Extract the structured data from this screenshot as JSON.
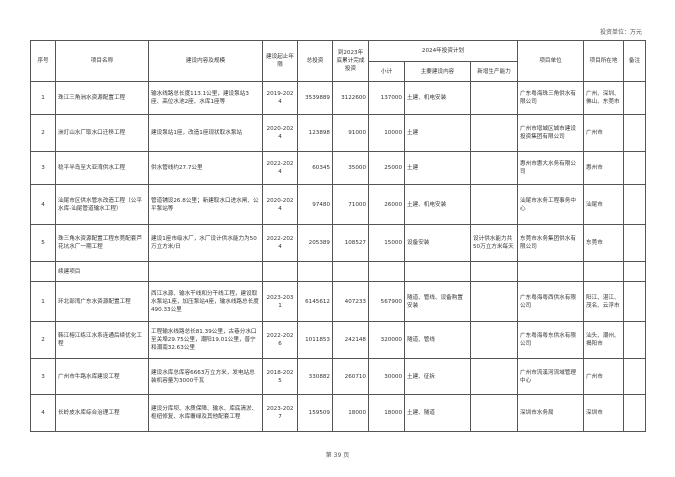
{
  "unit_label": "投资单位：万元",
  "headers": {
    "no": "序号",
    "name": "项目名称",
    "content": "建设内容及规模",
    "period": "建设起止年限",
    "total": "总投资",
    "done": "到2023年底累计完成投资",
    "plan2024": "2024年投资计划",
    "subtotal": "小计",
    "main": "主要建设内容",
    "capacity": "新增生产能力",
    "unit": "项目单位",
    "location": "项目所在地",
    "remark": "备注"
  },
  "rows_new": [
    {
      "no": "1",
      "name": "珠江三角洲水资源配置工程",
      "content": "输水线路总长度113.1公里，建设泵站3座、高位水池2座、水库1座等",
      "period": "2019-2024",
      "total": "3539889",
      "done": "3122600",
      "subtotal": "137000",
      "main": "土建、机电安装",
      "capacity": "",
      "unit": "广东粤海珠三角供水有限公司",
      "location": "广州、深圳、佛山、东莞市",
      "remark": ""
    },
    {
      "no": "2",
      "name": "洲灯山水厂取水口迁移工程",
      "content": "建设泵站1座，改造1座现状取水泵站",
      "period": "2020-2024",
      "total": "123898",
      "done": "91000",
      "subtotal": "10000",
      "main": "土建",
      "capacity": "",
      "unit": "广州市增城区城市建设投资集团有限公司",
      "location": "广州市",
      "remark": ""
    },
    {
      "no": "3",
      "name": "稔平半岛至大亚湾供水工程",
      "content": "供水管线约27.7公里",
      "period": "2022-2024",
      "total": "60345",
      "done": "35000",
      "subtotal": "25000",
      "main": "土建",
      "capacity": "",
      "unit": "惠州市惠大水务有限公司",
      "location": "惠州市",
      "remark": ""
    },
    {
      "no": "4",
      "name": "汕尾市区供水管水改造工程（公平水库-汕尾管道输水工程）",
      "content": "管道铺设26.8公里；新建取水口进水闸、公平泵站等",
      "period": "2020-2024",
      "total": "97480",
      "done": "71000",
      "subtotal": "26000",
      "main": "土建、机电安装",
      "capacity": "",
      "unit": "汕尾市水务工程事务中心",
      "location": "汕尾市",
      "remark": ""
    },
    {
      "no": "5",
      "name": "珠三角水资源配置工程东莞配套芦花坑水厂一期工程",
      "content": "建设1座市级水厂，水厂设计供水能力为50万立方米/日",
      "period": "2022-2024",
      "total": "205389",
      "done": "108527",
      "subtotal": "15000",
      "main": "设备安装",
      "capacity": "设计供水能力共50万立方米每天",
      "unit": "东莞市水务集团供水有限公司",
      "location": "东莞市",
      "remark": ""
    }
  ],
  "section_continuing": "续建项目",
  "rows_cont": [
    {
      "no": "1",
      "name": "环北部湾广东水资源配置工程",
      "content": "西江水源、输水干线和分干线工程，建设取水泵站1座，加压泵站4座，输水线路总长度490.33公里",
      "period": "2023-2031",
      "total": "6145612",
      "done": "407233",
      "subtotal": "567900",
      "main": "隧道、管线、设备购置安装",
      "capacity": "",
      "unit": "广东粤海粤西供水有限公司",
      "location": "阳江、湛江、茂名、云浮市",
      "remark": ""
    },
    {
      "no": "2",
      "name": "韩江榕江练江水系连通后续优化工程",
      "content": "工程输水线路总长81.39公里，古巷分水口至关埠29.75公里，潮阳19.01公里，普宁和潮南32.63公里",
      "period": "2022-2026",
      "total": "1011853",
      "done": "242148",
      "subtotal": "320000",
      "main": "隧道、管线",
      "capacity": "",
      "unit": "广东粤海粤东供水有限公司",
      "location": "汕头、潮州、揭阳市",
      "remark": ""
    },
    {
      "no": "3",
      "name": "广州市牛路水库建设工程",
      "content": "建设水库总库容6663万立方米，发电站总装机容量为3000千瓦",
      "period": "2018-2025",
      "total": "330882",
      "done": "260710",
      "subtotal": "30000",
      "main": "土建、征拆",
      "capacity": "",
      "unit": "广州市流溪河流域管理中心",
      "location": "广州市",
      "remark": ""
    },
    {
      "no": "4",
      "name": "长岭皮水库综合治理工程",
      "content": "建设分库坝、水质保障、输水、库底清淤、枢纽修复、水库覆绿及其他配套工程",
      "period": "2023-2027",
      "total": "159509",
      "done": "18000",
      "subtotal": "18000",
      "main": "土建、隧道",
      "capacity": "",
      "unit": "深圳市水务局",
      "location": "深圳市",
      "remark": ""
    }
  ],
  "page_number": "第 39 页"
}
